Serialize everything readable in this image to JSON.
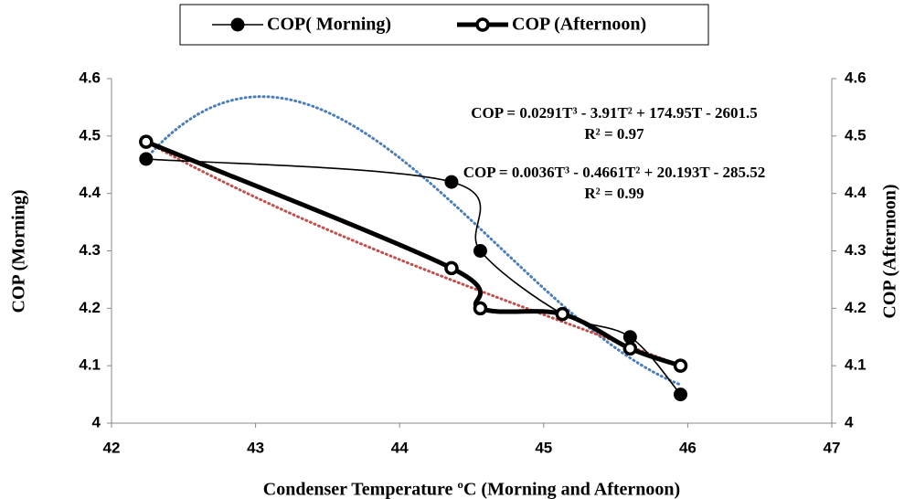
{
  "chart_data": {
    "type": "line",
    "x": [
      42.24,
      44.36,
      44.56,
      45.13,
      45.6,
      45.95
    ],
    "series": [
      {
        "name": "COP( Morning)",
        "color": "#000000",
        "values": [
          4.46,
          4.42,
          4.3,
          4.19,
          4.15,
          4.05
        ],
        "marker": "filled",
        "trendline_color": "#4a7ebb"
      },
      {
        "name": "COP (Afternoon)",
        "color": "#000000",
        "values": [
          4.49,
          4.27,
          4.2,
          4.19,
          4.13,
          4.1
        ],
        "marker": "open",
        "axis": "y2",
        "trendline_color": "#c0504d"
      }
    ],
    "xlabel": "Condenser Temperature ºC (Morning and Afternoon)",
    "ylabel": "COP (Morning)",
    "y2label": "COP (Afternoon)",
    "xlim": [
      42,
      47
    ],
    "xticks": [
      42,
      43,
      44,
      45,
      46,
      47
    ],
    "ylim": [
      4,
      4.6
    ],
    "yticks": [
      4,
      4.1,
      4.2,
      4.3,
      4.4,
      4.5,
      4.6
    ],
    "y2lim": [
      4,
      4.6
    ],
    "y2ticks": [
      4,
      4.1,
      4.2,
      4.3,
      4.4,
      4.5,
      4.6
    ],
    "annotations": [
      "COP = 0.0291T³ - 3.91T² + 174.95T - 2601.5",
      "R² = 0.97",
      "COP = 0.0036T³ - 0.4661T² + 20.193T - 285.52",
      "R² = 0.99"
    ],
    "legend": "top"
  }
}
